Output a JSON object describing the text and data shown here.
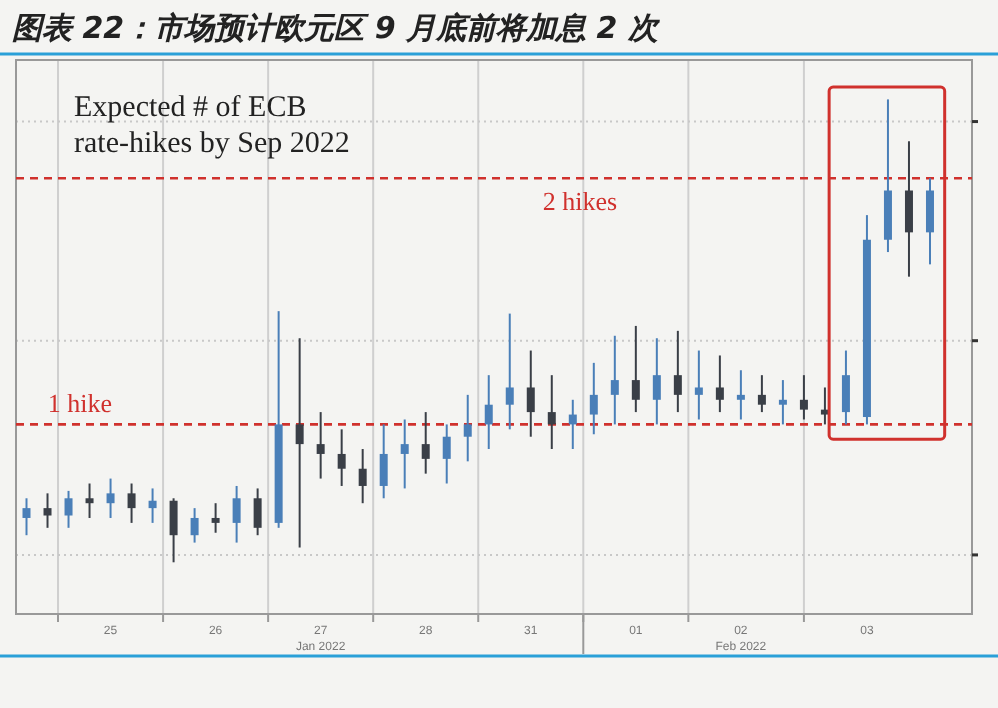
{
  "chart_data": {
    "type": "candlestick",
    "title": "图表 22：市场预计欧元区 9 月底前将加息 2 次",
    "annotations": [
      "Expected # of ECB rate-hikes by Sep 2022",
      "Jan 2022",
      "Feb 2022"
    ],
    "colors": [
      "#4a7fb8",
      "#3a3f47",
      "#4a7fb8",
      "#3a3f47",
      "#4a7fb8",
      "#3a3f47",
      "#4a7fb8",
      "#3a3f47",
      "#4a7fb8",
      "#3a3f47",
      "#4a7fb8",
      "#3a3f47",
      "#4a7fb8",
      "#3a3f47",
      "#3a3f47",
      "#3a3f47",
      "#3a3f47",
      "#4a7fb8",
      "#4a7fb8",
      "#3a3f47",
      "#4a7fb8",
      "#4a7fb8",
      "#4a7fb8",
      "#4a7fb8",
      "#3a3f47",
      "#3a3f47",
      "#4a7fb8",
      "#4a7fb8",
      "#4a7fb8",
      "#3a3f47",
      "#4a7fb8",
      "#3a3f47",
      "#4a7fb8",
      "#3a3f47",
      "#4a7fb8",
      "#3a3f47",
      "#4a7fb8",
      "#3a3f47",
      "#3a3f47",
      "#4a7fb8",
      "#4a7fb8",
      "#4a7fb8",
      "#3a3f47",
      "#4a7fb8"
    ],
    "categories": [
      null,
      null,
      null,
      null,
      "25",
      null,
      null,
      null,
      null,
      "26",
      null,
      null,
      null,
      null,
      "27",
      null,
      null,
      null,
      null,
      "28",
      null,
      null,
      null,
      null,
      "31",
      null,
      null,
      null,
      null,
      "01",
      null,
      null,
      null,
      null,
      "02",
      null,
      null,
      null,
      null,
      null,
      "03",
      null,
      null,
      null
    ],
    "ohlc": [
      [
        0.62,
        0.7,
        0.55,
        0.66
      ],
      [
        0.66,
        0.72,
        0.58,
        0.63
      ],
      [
        0.63,
        0.73,
        0.58,
        0.7
      ],
      [
        0.7,
        0.76,
        0.62,
        0.68
      ],
      [
        0.68,
        0.78,
        0.62,
        0.72
      ],
      [
        0.72,
        0.76,
        0.6,
        0.66
      ],
      [
        0.66,
        0.74,
        0.6,
        0.69
      ],
      [
        0.69,
        0.7,
        0.44,
        0.55
      ],
      [
        0.55,
        0.66,
        0.52,
        0.62
      ],
      [
        0.62,
        0.68,
        0.56,
        0.6
      ],
      [
        0.6,
        0.75,
        0.52,
        0.7
      ],
      [
        0.7,
        0.74,
        0.55,
        0.58
      ],
      [
        0.6,
        1.46,
        0.58,
        1.0
      ],
      [
        1.0,
        1.35,
        0.5,
        0.92
      ],
      [
        0.92,
        1.05,
        0.78,
        0.88
      ],
      [
        0.88,
        0.98,
        0.75,
        0.82
      ],
      [
        0.82,
        0.9,
        0.68,
        0.75
      ],
      [
        0.75,
        1.0,
        0.7,
        0.88
      ],
      [
        0.88,
        1.02,
        0.74,
        0.92
      ],
      [
        0.92,
        1.05,
        0.8,
        0.86
      ],
      [
        0.86,
        1.0,
        0.76,
        0.95
      ],
      [
        0.95,
        1.12,
        0.85,
        1.0
      ],
      [
        1.0,
        1.2,
        0.9,
        1.08
      ],
      [
        1.08,
        1.45,
        0.98,
        1.15
      ],
      [
        1.15,
        1.3,
        0.95,
        1.05
      ],
      [
        1.05,
        1.2,
        0.9,
        1.0
      ],
      [
        1.0,
        1.1,
        0.9,
        1.04
      ],
      [
        1.04,
        1.25,
        0.96,
        1.12
      ],
      [
        1.12,
        1.36,
        1.0,
        1.18
      ],
      [
        1.18,
        1.4,
        1.05,
        1.1
      ],
      [
        1.1,
        1.35,
        1.0,
        1.2
      ],
      [
        1.2,
        1.38,
        1.05,
        1.12
      ],
      [
        1.12,
        1.3,
        1.02,
        1.15
      ],
      [
        1.15,
        1.28,
        1.05,
        1.1
      ],
      [
        1.1,
        1.22,
        1.02,
        1.12
      ],
      [
        1.12,
        1.2,
        1.05,
        1.08
      ],
      [
        1.08,
        1.18,
        1.0,
        1.1
      ],
      [
        1.1,
        1.2,
        1.02,
        1.06
      ],
      [
        1.06,
        1.15,
        1.0,
        1.04
      ],
      [
        1.05,
        1.3,
        1.0,
        1.2
      ],
      [
        1.03,
        1.85,
        1.0,
        1.75
      ],
      [
        1.75,
        2.32,
        1.7,
        1.95
      ],
      [
        1.95,
        2.15,
        1.6,
        1.78
      ],
      [
        1.78,
        2.0,
        1.65,
        1.95
      ]
    ],
    "ylim": [
      0.23,
      2.48
    ],
    "yticks": [
      {
        "value": 0.47,
        "label": null
      },
      {
        "value": 1.34,
        "label": null
      },
      {
        "value": 2.23,
        "label": null
      }
    ],
    "tick_labels": "x",
    "grid": true,
    "ref_lines": [
      {
        "axis": "y",
        "value": 1,
        "label": "1 hike",
        "color": "#d0312d",
        "line_style": "dashed"
      },
      {
        "axis": "y",
        "value": 2,
        "label": "2 hikes",
        "color": "#d0312d",
        "line_style": "dashed"
      }
    ]
  }
}
